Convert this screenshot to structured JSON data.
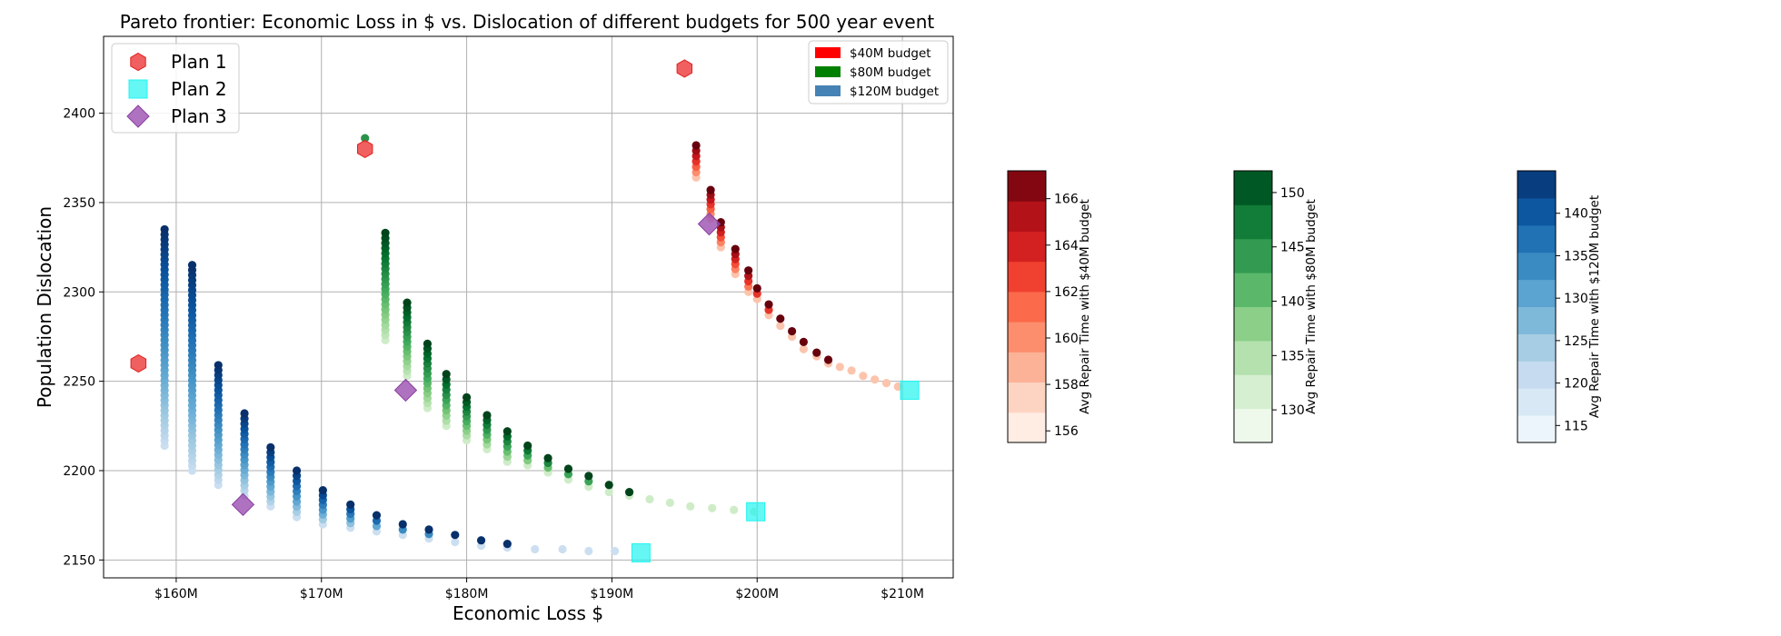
{
  "chart_data": {
    "type": "scatter",
    "title": "Pareto frontier: Economic Loss in $ vs. Dislocation of different budgets for 500 year event",
    "xlabel": "Economic Loss $",
    "ylabel": "Population Dislocation",
    "xlim": [
      155,
      213.5
    ],
    "ylim": [
      2140,
      2443
    ],
    "x_ticks": [
      160,
      170,
      180,
      190,
      200,
      210
    ],
    "x_tick_labels": [
      "$160M",
      "$170M",
      "$180M",
      "$190M",
      "$200M",
      "$210M"
    ],
    "y_ticks": [
      2150,
      2200,
      2250,
      2300,
      2350,
      2400
    ],
    "y_tick_labels": [
      "2150",
      "2200",
      "2250",
      "2300",
      "2350",
      "2400"
    ],
    "grid": true,
    "legend_plans": {
      "placement": "top-left",
      "items": [
        {
          "label": "Plan 1",
          "marker": "hexagon",
          "color": "#ef4444"
        },
        {
          "label": "Plan 2",
          "marker": "square",
          "color": "#22f4f0"
        },
        {
          "label": "Plan 3",
          "marker": "diamond",
          "color": "#9b4fb0"
        }
      ]
    },
    "legend_budgets": {
      "placement": "top-right",
      "items": [
        {
          "label": "$40M budget",
          "color": "#ff0000"
        },
        {
          "label": "$80M budget",
          "color": "#008000"
        },
        {
          "label": "$120M budget",
          "color": "#4682b4"
        }
      ]
    },
    "series": [
      {
        "name": "$40M budget",
        "colormap": "Reds",
        "columns": [
          {
            "x": 195.8,
            "y_top": 2382,
            "y_bottom": 2364
          },
          {
            "x": 196.8,
            "y_top": 2357,
            "y_bottom": 2341
          },
          {
            "x": 197.5,
            "y_top": 2339,
            "y_bottom": 2325
          },
          {
            "x": 198.5,
            "y_top": 2324,
            "y_bottom": 2310
          },
          {
            "x": 199.4,
            "y_top": 2312,
            "y_bottom": 2300
          },
          {
            "x": 200.0,
            "y_top": 2302,
            "y_bottom": 2296
          },
          {
            "x": 200.8,
            "y_top": 2293,
            "y_bottom": 2287
          },
          {
            "x": 201.6,
            "y_top": 2285,
            "y_bottom": 2281
          },
          {
            "x": 202.4,
            "y_top": 2278,
            "y_bottom": 2275
          },
          {
            "x": 203.2,
            "y_top": 2272,
            "y_bottom": 2268
          },
          {
            "x": 204.1,
            "y_top": 2266,
            "y_bottom": 2264
          },
          {
            "x": 204.9,
            "y_top": 2262,
            "y_bottom": 2260
          },
          {
            "x": 205.7,
            "y_top": 2258,
            "y_bottom": 2258
          },
          {
            "x": 206.5,
            "y_top": 2256,
            "y_bottom": 2256
          },
          {
            "x": 207.3,
            "y_top": 2253,
            "y_bottom": 2253
          },
          {
            "x": 208.1,
            "y_top": 2251,
            "y_bottom": 2251
          },
          {
            "x": 208.9,
            "y_top": 2249,
            "y_bottom": 2249
          },
          {
            "x": 209.7,
            "y_top": 2247,
            "y_bottom": 2247
          }
        ],
        "colorbar": {
          "label": "Avg Repair Time with $40M budget",
          "range": [
            155.5,
            167.2
          ],
          "ticks": [
            156,
            158,
            160,
            162,
            164,
            166
          ],
          "levels": 9
        }
      },
      {
        "name": "$80M budget",
        "colormap": "Greens",
        "columns": [
          {
            "x": 174.4,
            "y_top": 2333,
            "y_bottom": 2273
          },
          {
            "x": 175.9,
            "y_top": 2294,
            "y_bottom": 2253
          },
          {
            "x": 177.3,
            "y_top": 2271,
            "y_bottom": 2235
          },
          {
            "x": 178.6,
            "y_top": 2254,
            "y_bottom": 2225
          },
          {
            "x": 180.0,
            "y_top": 2241,
            "y_bottom": 2217
          },
          {
            "x": 181.4,
            "y_top": 2231,
            "y_bottom": 2212
          },
          {
            "x": 182.8,
            "y_top": 2222,
            "y_bottom": 2205
          },
          {
            "x": 184.2,
            "y_top": 2214,
            "y_bottom": 2203
          },
          {
            "x": 185.6,
            "y_top": 2207,
            "y_bottom": 2199
          },
          {
            "x": 187.0,
            "y_top": 2201,
            "y_bottom": 2195
          },
          {
            "x": 188.4,
            "y_top": 2197,
            "y_bottom": 2191
          },
          {
            "x": 189.8,
            "y_top": 2192,
            "y_bottom": 2188
          },
          {
            "x": 191.2,
            "y_top": 2188,
            "y_bottom": 2186
          },
          {
            "x": 192.6,
            "y_top": 2185,
            "y_bottom": 2184
          },
          {
            "x": 194.0,
            "y_top": 2182,
            "y_bottom": 2182
          },
          {
            "x": 195.4,
            "y_top": 2180,
            "y_bottom": 2180
          },
          {
            "x": 196.9,
            "y_top": 2179,
            "y_bottom": 2179
          },
          {
            "x": 198.4,
            "y_top": 2178,
            "y_bottom": 2178
          },
          {
            "x": 199.8,
            "y_top": 2177,
            "y_bottom": 2177
          }
        ],
        "extra_points": [
          {
            "x": 173.0,
            "y": 2386
          }
        ],
        "colorbar": {
          "label": "Avg Repair Time with $80M budget",
          "range": [
            127,
            152
          ],
          "ticks": [
            130,
            135,
            140,
            145,
            150
          ],
          "levels": 8
        }
      },
      {
        "name": "$120M budget",
        "colormap": "Blues",
        "columns": [
          {
            "x": 159.2,
            "y_top": 2335,
            "y_bottom": 2214
          },
          {
            "x": 161.1,
            "y_top": 2315,
            "y_bottom": 2200
          },
          {
            "x": 162.9,
            "y_top": 2259,
            "y_bottom": 2192
          },
          {
            "x": 164.7,
            "y_top": 2232,
            "y_bottom": 2186
          },
          {
            "x": 166.5,
            "y_top": 2213,
            "y_bottom": 2180
          },
          {
            "x": 168.3,
            "y_top": 2200,
            "y_bottom": 2174
          },
          {
            "x": 170.1,
            "y_top": 2189,
            "y_bottom": 2170
          },
          {
            "x": 172.0,
            "y_top": 2181,
            "y_bottom": 2168
          },
          {
            "x": 173.8,
            "y_top": 2175,
            "y_bottom": 2166
          },
          {
            "x": 175.6,
            "y_top": 2170,
            "y_bottom": 2164
          },
          {
            "x": 177.4,
            "y_top": 2167,
            "y_bottom": 2162
          },
          {
            "x": 179.2,
            "y_top": 2164,
            "y_bottom": 2160
          },
          {
            "x": 181.0,
            "y_top": 2161,
            "y_bottom": 2158
          },
          {
            "x": 182.8,
            "y_top": 2159,
            "y_bottom": 2157
          },
          {
            "x": 184.7,
            "y_top": 2157,
            "y_bottom": 2156
          },
          {
            "x": 186.6,
            "y_top": 2156,
            "y_bottom": 2156
          },
          {
            "x": 188.4,
            "y_top": 2155,
            "y_bottom": 2155
          },
          {
            "x": 190.2,
            "y_top": 2155,
            "y_bottom": 2155
          }
        ],
        "colorbar": {
          "label": "Avg Repair Time with $120M budget",
          "range": [
            113,
            145
          ],
          "ticks": [
            115,
            120,
            125,
            130,
            135,
            140
          ],
          "levels": 10
        }
      }
    ],
    "plans": [
      {
        "name": "Plan 1",
        "points": [
          {
            "x": 157.4,
            "y": 2260
          },
          {
            "x": 173.0,
            "y": 2380
          },
          {
            "x": 195.0,
            "y": 2425
          }
        ]
      },
      {
        "name": "Plan 2",
        "points": [
          {
            "x": 192.0,
            "y": 2154
          },
          {
            "x": 199.9,
            "y": 2177
          },
          {
            "x": 210.5,
            "y": 2245
          }
        ]
      },
      {
        "name": "Plan 3",
        "points": [
          {
            "x": 164.6,
            "y": 2181
          },
          {
            "x": 175.8,
            "y": 2245
          },
          {
            "x": 196.7,
            "y": 2338
          }
        ]
      }
    ]
  }
}
